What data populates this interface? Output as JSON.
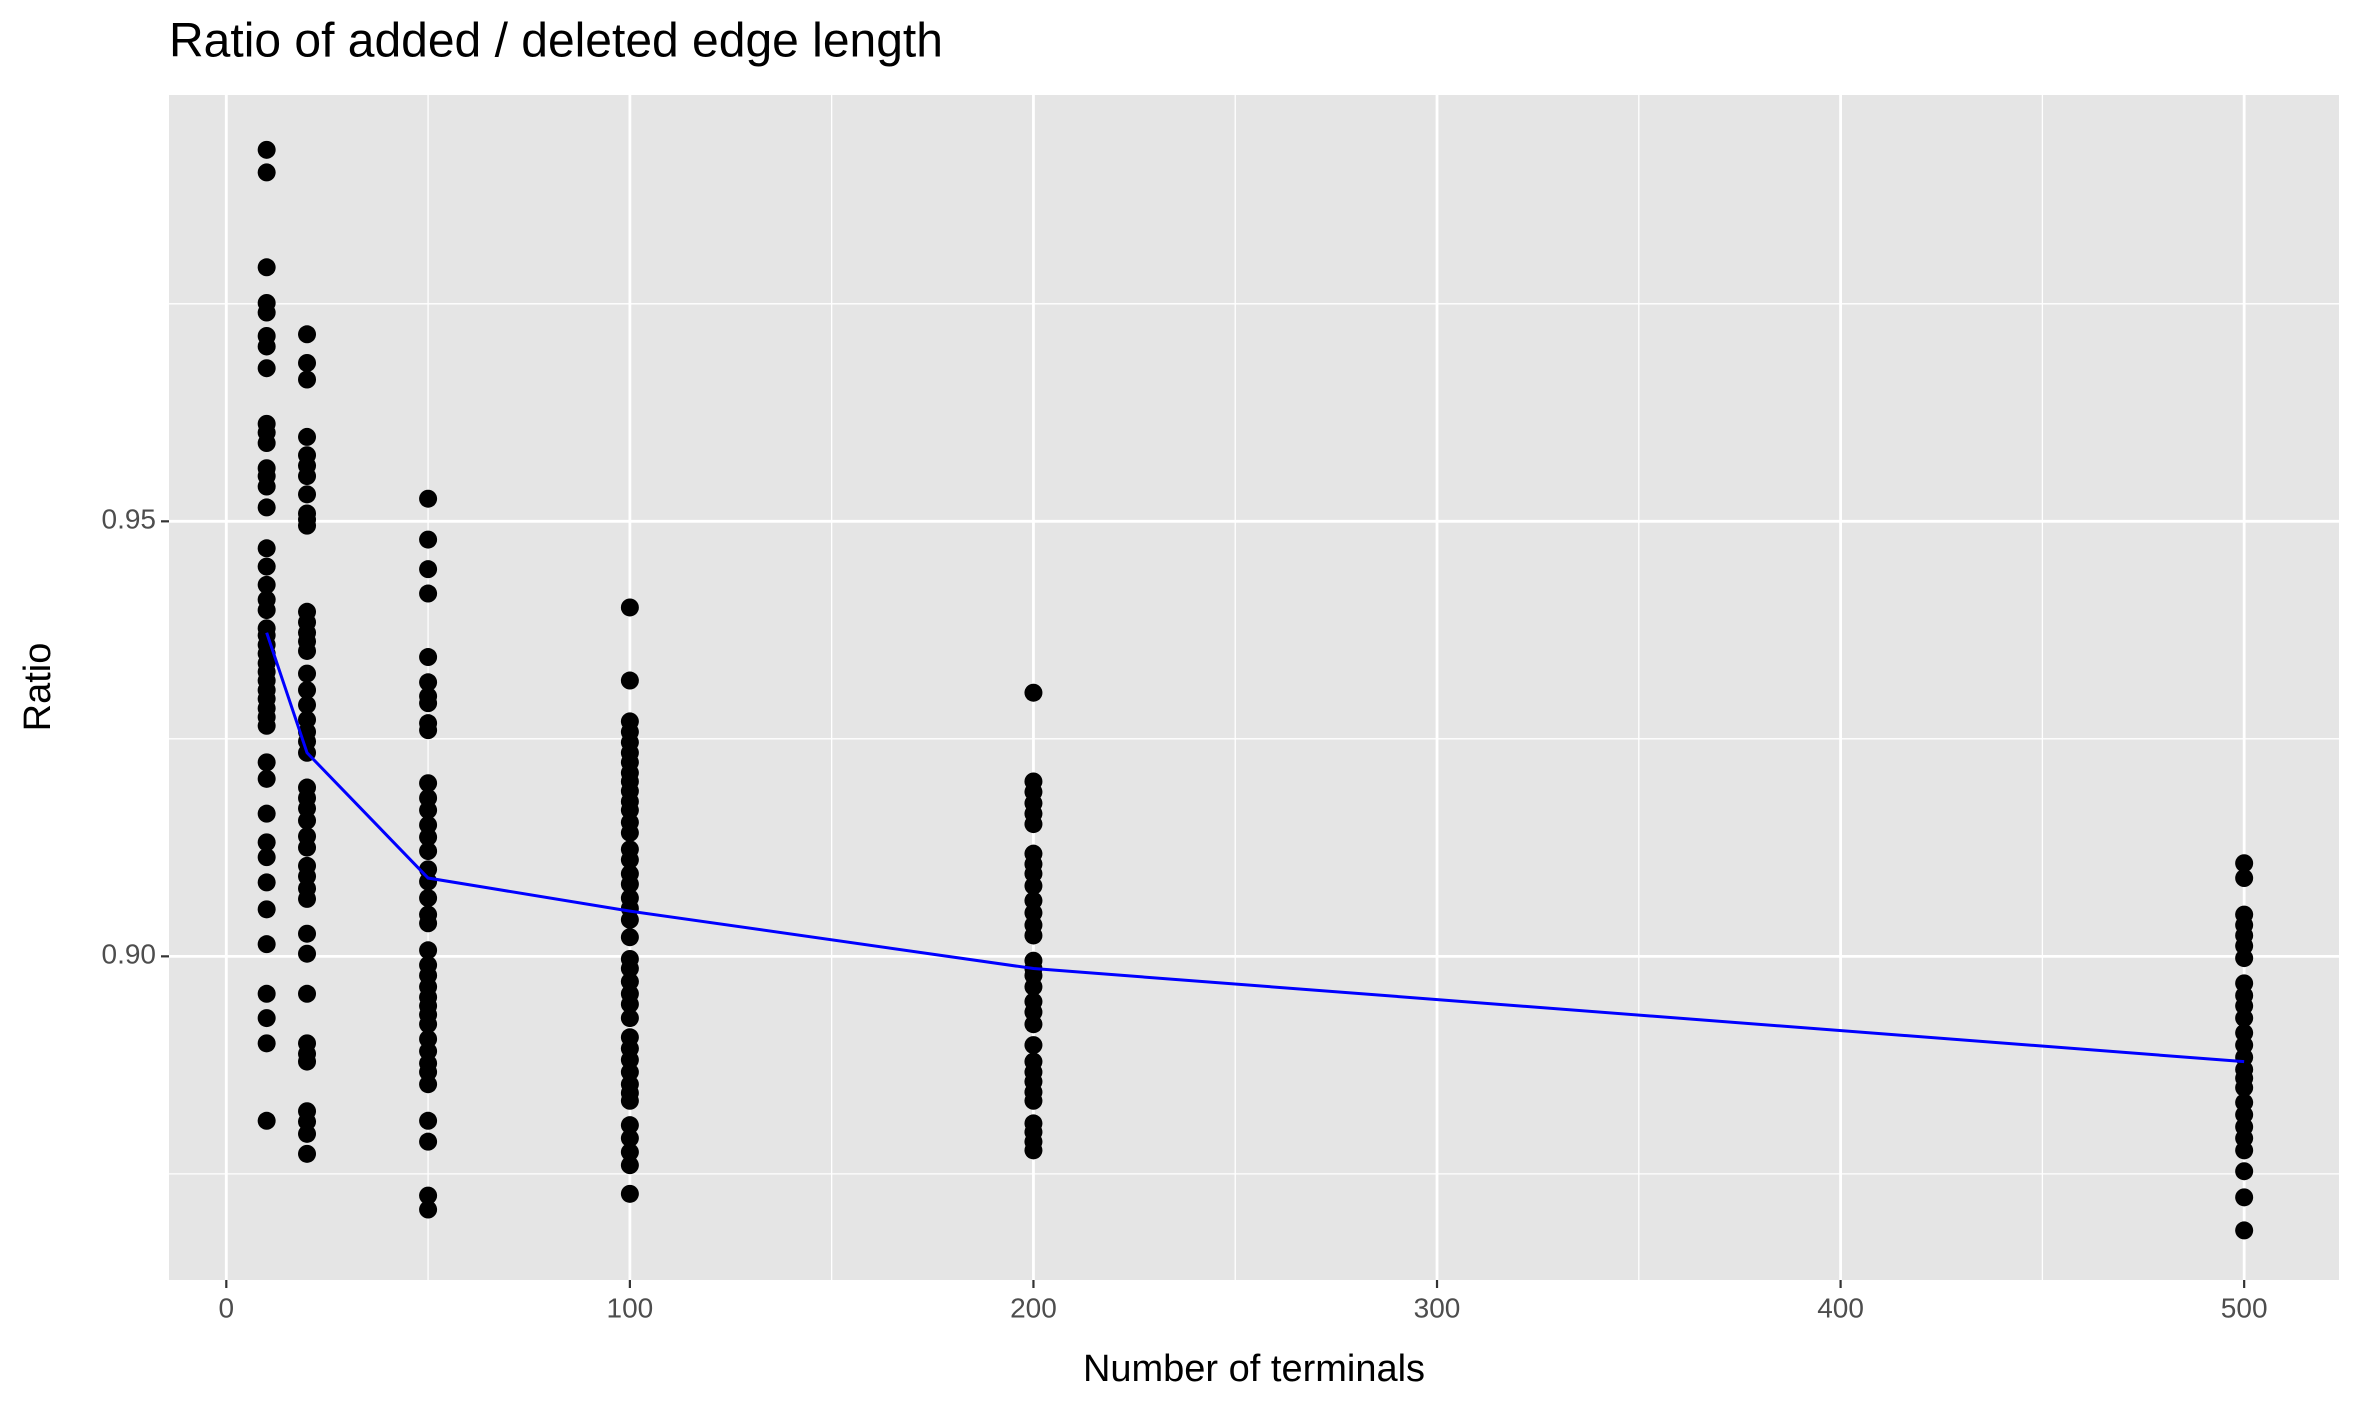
{
  "chart_data": {
    "type": "scatter",
    "title": "Ratio of added / deleted edge length",
    "x_label": "Number of terminals",
    "y_label": "Ratio",
    "xlim": [
      -14.2,
      523.5
    ],
    "ylim": [
      0.8628,
      0.999
    ],
    "xticks": [
      0,
      100,
      200,
      300,
      400,
      500
    ],
    "yticks": [
      {
        "value": 0.9,
        "label": "0.90"
      },
      {
        "value": 0.95,
        "label": "0.95"
      }
    ],
    "xminor": [
      50,
      150,
      250,
      350,
      450
    ],
    "yminor": [
      0.875,
      0.925,
      0.975
    ],
    "grid": true,
    "point_color": "#000000",
    "groups": [
      {
        "x": 10,
        "values": [
          0.9927,
          0.9901,
          0.9792,
          0.9751,
          0.974,
          0.9713,
          0.9701,
          0.9676,
          0.9612,
          0.9602,
          0.959,
          0.9561,
          0.9552,
          0.954,
          0.9516,
          0.9469,
          0.9448,
          0.9427,
          0.941,
          0.9398,
          0.9377,
          0.9369,
          0.9358,
          0.9348,
          0.9337,
          0.9327,
          0.9317,
          0.9306,
          0.9296,
          0.9285,
          0.9275,
          0.9265,
          0.9223,
          0.9204,
          0.9164,
          0.9131,
          0.9114,
          0.9085,
          0.9054,
          0.9014,
          0.8957,
          0.8929,
          0.89,
          0.8811
        ]
      },
      {
        "x": 20,
        "values": [
          0.9715,
          0.9682,
          0.9663,
          0.9597,
          0.9576,
          0.9564,
          0.9552,
          0.9531,
          0.9509,
          0.9502,
          0.9495,
          0.9396,
          0.9384,
          0.9372,
          0.9362,
          0.9351,
          0.9325,
          0.9306,
          0.9289,
          0.9272,
          0.9258,
          0.9247,
          0.9234,
          0.9194,
          0.9182,
          0.917,
          0.9156,
          0.9138,
          0.9125,
          0.9104,
          0.9092,
          0.9078,
          0.9066,
          0.9026,
          0.9003,
          0.8957,
          0.89,
          0.8888,
          0.8879,
          0.8822,
          0.881,
          0.8796,
          0.8773
        ]
      },
      {
        "x": 50,
        "values": [
          0.9526,
          0.9479,
          0.9445,
          0.9417,
          0.9344,
          0.9315,
          0.9299,
          0.9291,
          0.9268,
          0.926,
          0.9199,
          0.9182,
          0.9168,
          0.9151,
          0.9137,
          0.9121,
          0.91,
          0.9086,
          0.9067,
          0.9048,
          0.9038,
          0.9007,
          0.899,
          0.8978,
          0.8965,
          0.8953,
          0.8943,
          0.8933,
          0.8922,
          0.8905,
          0.8891,
          0.8877,
          0.8867,
          0.8853,
          0.8811,
          0.8787,
          0.8725,
          0.8709
        ]
      },
      {
        "x": 100,
        "values": [
          0.9401,
          0.9317,
          0.927,
          0.9258,
          0.9246,
          0.9234,
          0.9223,
          0.9211,
          0.9201,
          0.919,
          0.9178,
          0.9168,
          0.9154,
          0.9142,
          0.9123,
          0.9111,
          0.9095,
          0.9083,
          0.9067,
          0.9055,
          0.9042,
          0.9022,
          0.8997,
          0.8986,
          0.8971,
          0.8957,
          0.8945,
          0.8929,
          0.8907,
          0.8894,
          0.8881,
          0.8867,
          0.8853,
          0.8843,
          0.8834,
          0.8806,
          0.8791,
          0.8775,
          0.876,
          0.8727
        ]
      },
      {
        "x": 200,
        "values": [
          0.9303,
          0.9201,
          0.9189,
          0.9176,
          0.9164,
          0.9152,
          0.9118,
          0.9106,
          0.9095,
          0.9081,
          0.9064,
          0.905,
          0.9036,
          0.9024,
          0.8995,
          0.8986,
          0.8978,
          0.8965,
          0.8948,
          0.8936,
          0.8922,
          0.8898,
          0.8879,
          0.8867,
          0.8856,
          0.8844,
          0.8834,
          0.8808,
          0.8798,
          0.8787,
          0.8777
        ]
      },
      {
        "x": 500,
        "values": [
          0.9107,
          0.909,
          0.9048,
          0.9036,
          0.9024,
          0.9012,
          0.8998,
          0.8969,
          0.8955,
          0.8943,
          0.8929,
          0.8912,
          0.8898,
          0.8884,
          0.887,
          0.886,
          0.8849,
          0.8832,
          0.8818,
          0.8804,
          0.8791,
          0.8777,
          0.8753,
          0.8723,
          0.8685
        ]
      }
    ],
    "line": {
      "color": "#0000ff",
      "x": [
        10,
        20,
        50,
        100,
        200,
        500
      ],
      "values": [
        0.9372,
        0.9234,
        0.909,
        0.9052,
        0.8986,
        0.8879
      ]
    }
  }
}
